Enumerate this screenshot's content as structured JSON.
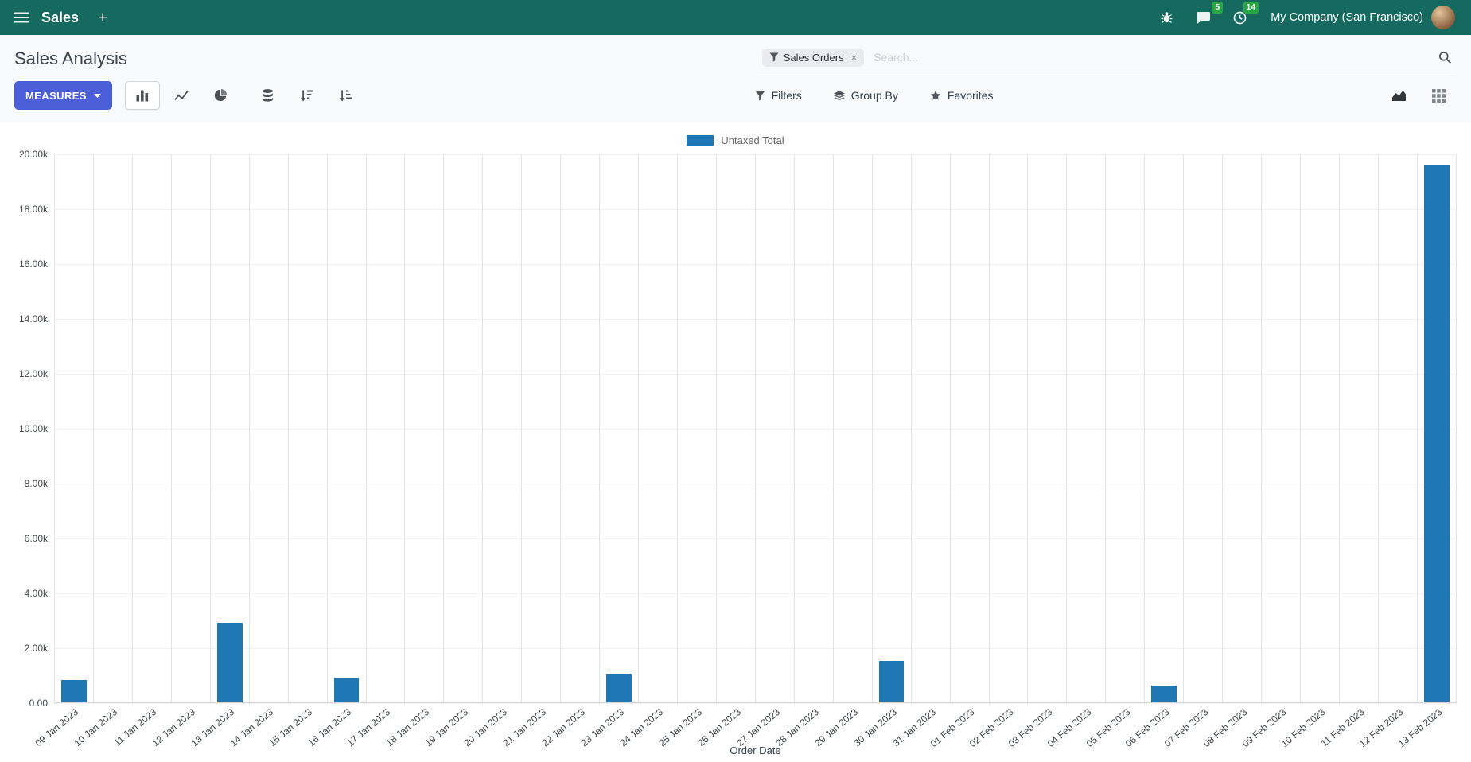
{
  "navbar": {
    "app_label": "Sales",
    "plus_label": "+",
    "company_label": "My Company (San Francisco)",
    "chat_badge": "5",
    "clock_badge": "14"
  },
  "control_panel": {
    "title": "Sales Analysis",
    "measures_button": "MEASURES",
    "search": {
      "facet_label": "Sales Orders",
      "facet_remove": "×",
      "placeholder": "Search..."
    },
    "filters_label": "Filters",
    "group_by_label": "Group By",
    "favorites_label": "Favorites"
  },
  "chart_data": {
    "type": "bar",
    "title": "",
    "xlabel": "Order Date",
    "ylabel": "",
    "ylim": [
      0,
      20000
    ],
    "grid": true,
    "legend_position": "top",
    "yticks": [
      "20.00k",
      "18.00k",
      "16.00k",
      "14.00k",
      "12.00k",
      "10.00k",
      "8.00k",
      "6.00k",
      "4.00k",
      "2.00k",
      "0.00"
    ],
    "categories": [
      "09 Jan 2023",
      "10 Jan 2023",
      "11 Jan 2023",
      "12 Jan 2023",
      "13 Jan 2023",
      "14 Jan 2023",
      "15 Jan 2023",
      "16 Jan 2023",
      "17 Jan 2023",
      "18 Jan 2023",
      "19 Jan 2023",
      "20 Jan 2023",
      "21 Jan 2023",
      "22 Jan 2023",
      "23 Jan 2023",
      "24 Jan 2023",
      "25 Jan 2023",
      "26 Jan 2023",
      "27 Jan 2023",
      "28 Jan 2023",
      "29 Jan 2023",
      "30 Jan 2023",
      "31 Jan 2023",
      "01 Feb 2023",
      "02 Feb 2023",
      "03 Feb 2023",
      "04 Feb 2023",
      "05 Feb 2023",
      "06 Feb 2023",
      "07 Feb 2023",
      "08 Feb 2023",
      "09 Feb 2023",
      "10 Feb 2023",
      "11 Feb 2023",
      "12 Feb 2023",
      "13 Feb 2023"
    ],
    "series": [
      {
        "name": "Untaxed Total",
        "color": "#1f77b4",
        "values": [
          800,
          0,
          0,
          0,
          2900,
          0,
          0,
          900,
          0,
          0,
          0,
          0,
          0,
          0,
          1050,
          0,
          0,
          0,
          0,
          0,
          0,
          1500,
          0,
          0,
          0,
          0,
          0,
          0,
          620,
          0,
          0,
          0,
          0,
          0,
          0,
          19600
        ]
      }
    ]
  },
  "colors": {
    "navbar_bg": "#15695e",
    "primary": "#4b5fd8",
    "badge_green": "#28a745",
    "bar": "#1f77b4"
  }
}
